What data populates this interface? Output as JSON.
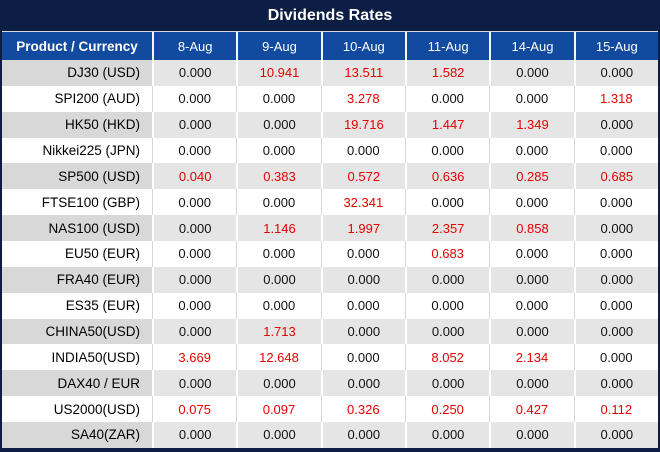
{
  "title": "Dividends Rates",
  "colors": {
    "title_bar_bg": "#0d1e45",
    "header_bg": "#114a9e",
    "gray_row_label": "#d8d8d8",
    "gray_row_data": "#e5e5e5",
    "white_row": "#ffffff",
    "value_zero_text": "#111111",
    "value_nonzero_text": "#e60000",
    "header_text": "#ffffff"
  },
  "chart_data": {
    "type": "table",
    "title": "Dividends Rates",
    "label_header": "Product / Currency",
    "date_headers": [
      "8-Aug",
      "9-Aug",
      "10-Aug",
      "11-Aug",
      "14-Aug",
      "15-Aug"
    ],
    "rows": [
      {
        "product": "DJ30 (USD)",
        "values": [
          "0.000",
          "10.941",
          "13.511",
          "1.582",
          "0.000",
          "0.000"
        ]
      },
      {
        "product": "SPI200 (AUD)",
        "values": [
          "0.000",
          "0.000",
          "3.278",
          "0.000",
          "0.000",
          "1.318"
        ]
      },
      {
        "product": "HK50 (HKD)",
        "values": [
          "0.000",
          "0.000",
          "19.716",
          "1.447",
          "1.349",
          "0.000"
        ]
      },
      {
        "product": "Nikkei225 (JPN)",
        "values": [
          "0.000",
          "0.000",
          "0.000",
          "0.000",
          "0.000",
          "0.000"
        ]
      },
      {
        "product": "SP500 (USD)",
        "values": [
          "0.040",
          "0.383",
          "0.572",
          "0.636",
          "0.285",
          "0.685"
        ]
      },
      {
        "product": "FTSE100 (GBP)",
        "values": [
          "0.000",
          "0.000",
          "32.341",
          "0.000",
          "0.000",
          "0.000"
        ]
      },
      {
        "product": "NAS100 (USD)",
        "values": [
          "0.000",
          "1.146",
          "1.997",
          "2.357",
          "0.858",
          "0.000"
        ]
      },
      {
        "product": "EU50 (EUR)",
        "values": [
          "0.000",
          "0.000",
          "0.000",
          "0.683",
          "0.000",
          "0.000"
        ]
      },
      {
        "product": "FRA40 (EUR)",
        "values": [
          "0.000",
          "0.000",
          "0.000",
          "0.000",
          "0.000",
          "0.000"
        ]
      },
      {
        "product": "ES35 (EUR)",
        "values": [
          "0.000",
          "0.000",
          "0.000",
          "0.000",
          "0.000",
          "0.000"
        ]
      },
      {
        "product": "CHINA50(USD)",
        "values": [
          "0.000",
          "1.713",
          "0.000",
          "0.000",
          "0.000",
          "0.000"
        ]
      },
      {
        "product": "INDIA50(USD)",
        "values": [
          "3.669",
          "12.648",
          "0.000",
          "8.052",
          "2.134",
          "0.000"
        ]
      },
      {
        "product": "DAX40 / EUR",
        "values": [
          "0.000",
          "0.000",
          "0.000",
          "0.000",
          "0.000",
          "0.000"
        ]
      },
      {
        "product": "US2000(USD)",
        "values": [
          "0.075",
          "0.097",
          "0.326",
          "0.250",
          "0.427",
          "0.112"
        ]
      },
      {
        "product": "SA40(ZAR)",
        "values": [
          "0.000",
          "0.000",
          "0.000",
          "0.000",
          "0.000",
          "0.000"
        ]
      }
    ]
  }
}
